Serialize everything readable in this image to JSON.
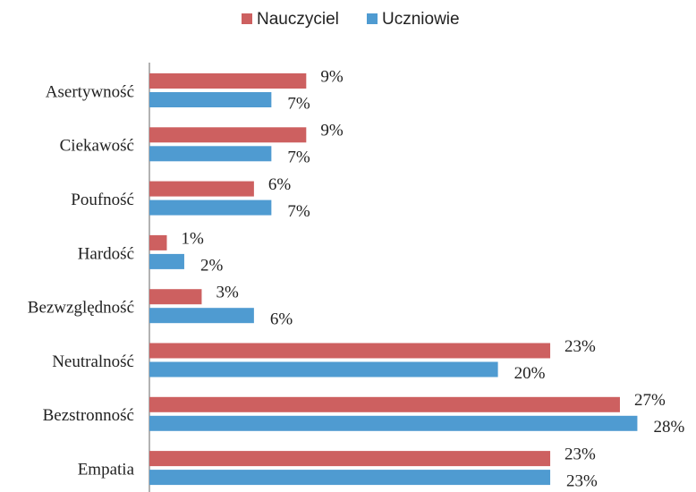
{
  "chart_data": {
    "type": "bar",
    "orientation": "horizontal",
    "categories": [
      "Asertywność",
      "Ciekawość",
      "Poufność",
      "Hardość",
      "Bezwzględność",
      "Neutralność",
      "Bezstronność",
      "Empatia"
    ],
    "series": [
      {
        "name": "Nauczyciel",
        "color": "#cd6060",
        "values": [
          9,
          9,
          6,
          1,
          3,
          23,
          27,
          23
        ],
        "value_labels": [
          "9%",
          "9%",
          "6%",
          "1%",
          "3%",
          "23%",
          "27%",
          "23%"
        ]
      },
      {
        "name": "Uczniowie",
        "color": "#4f9bd1",
        "values": [
          7,
          7,
          7,
          2,
          6,
          20,
          28,
          23
        ],
        "value_labels": [
          "7%",
          "7%",
          "7%",
          "2%",
          "6%",
          "20%",
          "28%",
          "23%"
        ]
      }
    ],
    "legend": "top"
  }
}
